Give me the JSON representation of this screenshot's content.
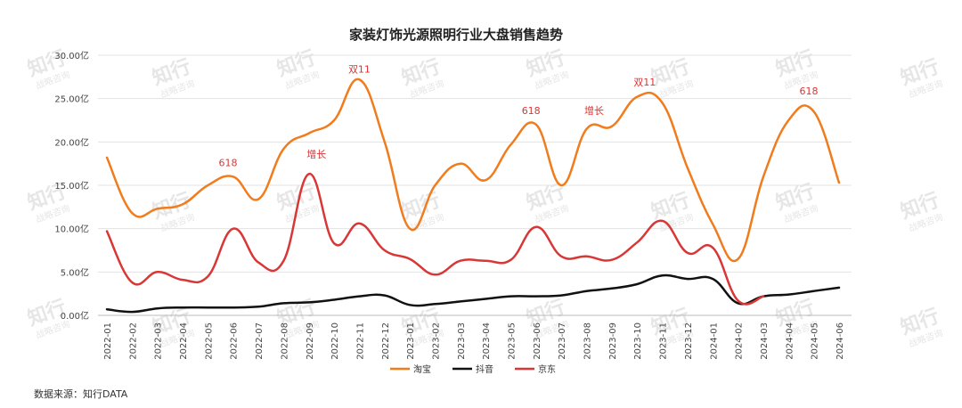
{
  "source_note": "数据来源：知行DATA",
  "watermark": {
    "main": "知行",
    "sub": "战略咨询"
  },
  "colors": {
    "taobao": "#f07c1d",
    "douyin": "#111111",
    "jd": "#d93636",
    "annotation": "#d93636",
    "grid": "#e3e3e3"
  },
  "chart_data": {
    "type": "line",
    "title": "家装灯饰光源照明行业大盘销售趋势",
    "xlabel": "",
    "ylabel": "",
    "ylim": [
      0,
      30
    ],
    "y_ticks": [
      {
        "value": 0,
        "label": "0.00亿"
      },
      {
        "value": 5,
        "label": "5.00亿"
      },
      {
        "value": 10,
        "label": "10.00亿"
      },
      {
        "value": 15,
        "label": "15.00亿"
      },
      {
        "value": 20,
        "label": "20.00亿"
      },
      {
        "value": 25,
        "label": "25.00亿"
      },
      {
        "value": 30,
        "label": "30.00亿"
      }
    ],
    "categories": [
      "2022-01",
      "2022-02",
      "2022-03",
      "2022-04",
      "2022-05",
      "2022-06",
      "2022-07",
      "2022-08",
      "2022-09",
      "2022-10",
      "2022-11",
      "2022-12",
      "2023-01",
      "2023-02",
      "2023-03",
      "2023-04",
      "2023-05",
      "2023-06",
      "2023-07",
      "2023-08",
      "2023-09",
      "2023-10",
      "2023-11",
      "2023-12",
      "2024-01",
      "2024-02",
      "2024-03",
      "2024-04",
      "2024-05",
      "2024-06"
    ],
    "grid": "horizontal",
    "legend_position": "bottom",
    "series": [
      {
        "name": "淘宝",
        "color": "#f07c1d",
        "values": [
          18.2,
          11.8,
          12.3,
          12.8,
          15.0,
          16.0,
          13.4,
          19.2,
          21.0,
          22.5,
          27.2,
          20.0,
          10.0,
          15.0,
          17.5,
          15.6,
          19.7,
          22.0,
          15.0,
          21.5,
          21.8,
          25.2,
          24.5,
          17.0,
          10.5,
          6.5,
          16.0,
          22.5,
          23.5,
          15.3
        ]
      },
      {
        "name": "抖音",
        "color": "#111111",
        "values": [
          0.7,
          0.4,
          0.8,
          0.9,
          0.9,
          0.9,
          1.0,
          1.4,
          1.5,
          1.8,
          2.2,
          2.3,
          1.2,
          1.3,
          1.6,
          1.9,
          2.2,
          2.2,
          2.3,
          2.8,
          3.1,
          3.6,
          4.6,
          4.2,
          4.2,
          1.4,
          2.2,
          2.4,
          2.8,
          3.2
        ]
      },
      {
        "name": "京东",
        "color": "#d93636",
        "values": [
          9.7,
          3.8,
          5.0,
          4.1,
          4.5,
          10.0,
          6.1,
          6.3,
          16.3,
          8.3,
          10.6,
          7.5,
          6.5,
          4.7,
          6.3,
          6.3,
          6.4,
          10.2,
          6.8,
          6.8,
          6.4,
          8.4,
          10.9,
          7.2,
          7.8,
          1.7,
          2.2,
          null,
          null,
          null
        ]
      }
    ],
    "annotations": [
      {
        "text": "618",
        "x_index": 4.8,
        "y": 17.2
      },
      {
        "text": "增长",
        "x_index": 8.3,
        "y": 18.2
      },
      {
        "text": "双11",
        "x_index": 10.0,
        "y": 28.0
      },
      {
        "text": "618",
        "x_index": 16.8,
        "y": 23.2
      },
      {
        "text": "增长",
        "x_index": 19.3,
        "y": 23.2
      },
      {
        "text": "双11",
        "x_index": 21.3,
        "y": 26.5
      },
      {
        "text": "618",
        "x_index": 27.8,
        "y": 25.5
      }
    ]
  }
}
